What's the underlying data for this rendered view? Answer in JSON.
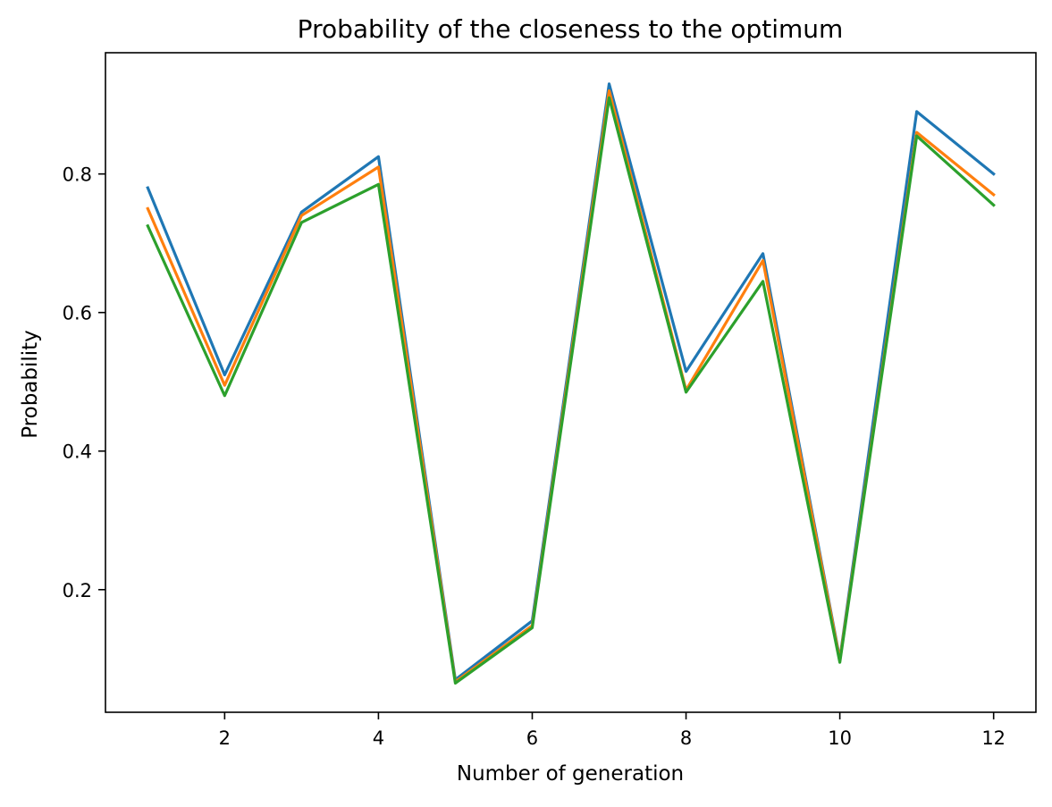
{
  "chart_data": {
    "type": "line",
    "title": "Probability of the closeness to the optimum",
    "xlabel": "Number of generation",
    "ylabel": "Probability",
    "xlim": [
      0.45,
      12.55
    ],
    "ylim": [
      0.023,
      0.975
    ],
    "xticks": [
      2,
      4,
      6,
      8,
      10,
      12
    ],
    "yticks": [
      0.2,
      0.4,
      0.6,
      0.8
    ],
    "xtick_labels": [
      "2",
      "4",
      "6",
      "8",
      "10",
      "12"
    ],
    "ytick_labels": [
      "0.2",
      "0.4",
      "0.6",
      "0.8"
    ],
    "grid": false,
    "legend": false,
    "x": [
      1,
      2,
      3,
      4,
      5,
      6,
      7,
      8,
      9,
      10,
      11,
      12
    ],
    "series": [
      {
        "color": "#1f77b4",
        "values": [
          0.78,
          0.51,
          0.745,
          0.825,
          0.07,
          0.155,
          0.93,
          0.515,
          0.685,
          0.1,
          0.89,
          0.8
        ]
      },
      {
        "color": "#ff7f0e",
        "values": [
          0.75,
          0.495,
          0.74,
          0.81,
          0.067,
          0.148,
          0.92,
          0.488,
          0.675,
          0.098,
          0.86,
          0.77
        ]
      },
      {
        "color": "#2ca02c",
        "values": [
          0.725,
          0.48,
          0.73,
          0.785,
          0.065,
          0.145,
          0.91,
          0.485,
          0.645,
          0.095,
          0.855,
          0.755
        ]
      }
    ]
  }
}
